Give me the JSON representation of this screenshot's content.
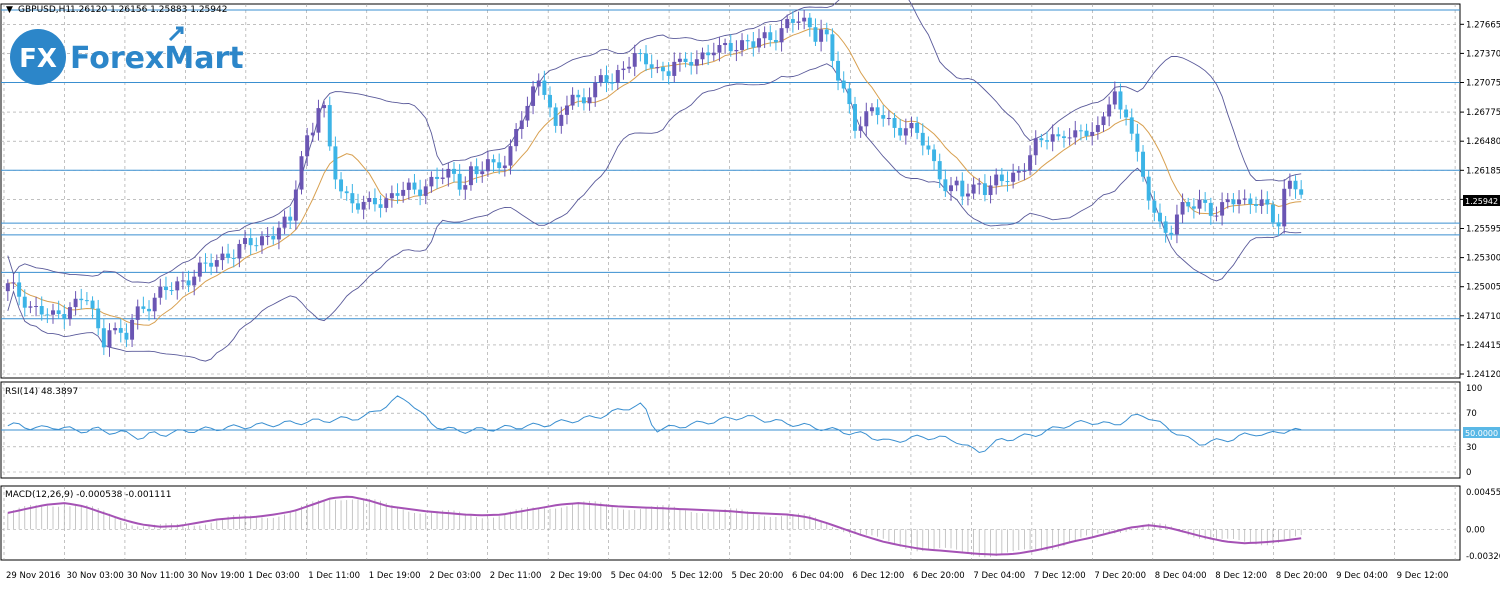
{
  "window": {
    "title_symbol": "GBPUSD,H1",
    "ohlc_text": "1.26120 1.26156 1.25883 1.25942",
    "dropdown_glyph": "▼"
  },
  "logo": {
    "mark_text": "FX",
    "brand_text": "ForexMart",
    "brand_color": "#2c86c9"
  },
  "colors": {
    "bull_candle": "#6a55b3",
    "bear_candle": "#3cb4e6",
    "bollinger": "#5a5a9a",
    "ma": "#d8a050",
    "level_line": "#3a8fd0",
    "rsi_line": "#3a8fd0",
    "macd_signal": "#a552b5",
    "macd_hist": "#b8b8b8",
    "grid": "#9a9a9a",
    "axis_text": "#000000",
    "price_marker_bg": "#000000",
    "price_marker_fg": "#ffffff",
    "rsi_level_bg": "#5ab8e6"
  },
  "chart_data": [
    {
      "id": "price",
      "type": "candlestick",
      "symbol": "GBPUSD",
      "timeframe": "H1",
      "y_ticks": [
        "1.27665",
        "1.27370",
        "1.27075",
        "1.26775",
        "1.26480",
        "1.26185",
        "1.25890",
        "1.25595",
        "1.25300",
        "1.25005",
        "1.24710",
        "1.24415",
        "1.24120"
      ],
      "ylim": [
        1.2412,
        1.2781
      ],
      "current_price": "1.25942",
      "horizontal_levels": [
        1.2781,
        1.27075,
        1.26185,
        1.2565,
        1.2553,
        1.2515,
        1.2468
      ],
      "x_tick_labels": [
        "29 Nov 2016",
        "30 Nov 03:00",
        "30 Nov 11:00",
        "30 Nov 19:00",
        "1 Dec 03:00",
        "1 Dec 11:00",
        "1 Dec 19:00",
        "2 Dec 03:00",
        "2 Dec 11:00",
        "2 Dec 19:00",
        "5 Dec 04:00",
        "5 Dec 12:00",
        "5 Dec 20:00",
        "6 Dec 04:00",
        "6 Dec 12:00",
        "6 Dec 20:00",
        "7 Dec 04:00",
        "7 Dec 12:00",
        "7 Dec 20:00",
        "8 Dec 04:00",
        "8 Dec 12:00",
        "8 Dec 20:00",
        "9 Dec 04:00",
        "9 Dec 12:00"
      ],
      "anchor_closes": [
        1.25,
        1.2495,
        1.249,
        1.248,
        1.2475,
        1.2472,
        1.2468,
        1.2475,
        1.2485,
        1.2482,
        1.249,
        1.247,
        1.244,
        1.2465,
        1.245,
        1.2445,
        1.247,
        1.248,
        1.2485,
        1.249,
        1.2495,
        1.25,
        1.2505,
        1.251,
        1.2515,
        1.2518,
        1.2525,
        1.253,
        1.2535,
        1.2535,
        1.254,
        1.2545,
        1.2548,
        1.2553,
        1.2555,
        1.256,
        1.2565,
        1.262,
        1.265,
        1.2662,
        1.2695,
        1.264,
        1.261,
        1.2595,
        1.2585,
        1.258,
        1.2582,
        1.259,
        1.2588,
        1.2592,
        1.2596,
        1.2598,
        1.26,
        1.2604,
        1.2606,
        1.261,
        1.2615,
        1.2612,
        1.2605,
        1.2618,
        1.2608,
        1.263,
        1.2622,
        1.2628,
        1.2638,
        1.2655,
        1.268,
        1.27,
        1.2715,
        1.269,
        1.265,
        1.2685,
        1.2695,
        1.269,
        1.2696,
        1.27,
        1.2712,
        1.271,
        1.272,
        1.2728,
        1.2733,
        1.2725,
        1.273,
        1.2722,
        1.2715,
        1.2728,
        1.272,
        1.2732,
        1.2735,
        1.2735,
        1.274,
        1.2738,
        1.2745,
        1.2748,
        1.2748,
        1.2745,
        1.275,
        1.2752,
        1.2758,
        1.2765,
        1.2768,
        1.277,
        1.2765,
        1.2758,
        1.2768,
        1.273,
        1.271,
        1.2692,
        1.2665,
        1.2672,
        1.2675,
        1.2676,
        1.267,
        1.2665,
        1.2662,
        1.2658,
        1.2655,
        1.2645,
        1.263,
        1.2615,
        1.259,
        1.2603,
        1.2595,
        1.26,
        1.261,
        1.2592,
        1.2605,
        1.2612,
        1.2614,
        1.2618,
        1.2625,
        1.264,
        1.265,
        1.266,
        1.265,
        1.2655,
        1.265,
        1.2655,
        1.2665,
        1.266,
        1.2675,
        1.27,
        1.2672,
        1.268,
        1.264,
        1.26,
        1.258,
        1.256,
        1.2555,
        1.2575,
        1.258,
        1.258,
        1.2585,
        1.2583,
        1.2578,
        1.258,
        1.2585,
        1.2589,
        1.2586,
        1.2592,
        1.2585,
        1.257,
        1.256,
        1.2605,
        1.2612,
        1.2594
      ],
      "indicators": [
        "Bollinger Bands (20)",
        "Moving Average"
      ]
    },
    {
      "id": "rsi",
      "type": "line",
      "label": "RSI(14) 48.3897",
      "y_ticks": [
        "100",
        "70",
        "50.0000",
        "30",
        "0"
      ],
      "ylim": [
        0,
        100
      ],
      "level": 50,
      "level_label": "50.0000",
      "anchor_values": [
        55,
        56,
        53,
        52,
        54,
        52,
        50,
        49,
        51,
        48,
        47,
        45,
        40,
        46,
        45,
        47,
        49,
        50,
        51,
        52,
        53,
        54,
        55,
        56,
        57,
        58,
        59,
        60,
        61,
        62,
        63,
        64,
        66,
        72,
        80,
        88,
        85,
        70,
        58,
        52,
        50,
        49,
        50,
        51,
        52,
        53,
        54,
        55,
        56,
        58,
        60,
        62,
        64,
        66,
        70,
        74,
        78,
        80,
        50,
        52,
        54,
        56,
        58,
        60,
        62,
        64,
        66,
        64,
        62,
        60,
        58,
        56,
        54,
        52,
        50,
        48,
        46,
        44,
        40,
        36,
        38,
        40,
        42,
        41,
        40,
        38,
        30,
        24,
        30,
        38,
        40,
        42,
        44,
        48,
        52,
        56,
        58,
        60,
        58,
        56,
        60,
        66,
        68,
        60,
        52,
        46,
        38,
        34,
        36,
        38,
        40,
        44,
        46,
        44,
        48,
        50,
        48.4
      ],
      "threshold_note": "30 / 70"
    },
    {
      "id": "macd",
      "type": "line+histogram",
      "label": "MACD(12,26,9) -0.000538 -0.001111",
      "y_ticks": [
        "0.00455",
        "0.00",
        "-0.003265"
      ],
      "ylim": [
        -0.003265,
        0.00455
      ],
      "macd_main_value": "-0.000538",
      "signal_value": "-0.001111",
      "anchor_signal": [
        0.002,
        0.0025,
        0.003,
        0.0032,
        0.0028,
        0.002,
        0.0012,
        0.0006,
        0.0003,
        0.0004,
        0.0008,
        0.0012,
        0.0014,
        0.0015,
        0.0018,
        0.0022,
        0.003,
        0.0038,
        0.004,
        0.0035,
        0.0028,
        0.0025,
        0.0022,
        0.002,
        0.0018,
        0.0017,
        0.0018,
        0.0022,
        0.0026,
        0.003,
        0.0032,
        0.003,
        0.0028,
        0.0027,
        0.0026,
        0.0025,
        0.0024,
        0.0023,
        0.0022,
        0.002,
        0.0019,
        0.0018,
        0.0015,
        0.0008,
        0.0,
        -0.0008,
        -0.0015,
        -0.002,
        -0.0024,
        -0.0026,
        -0.0028,
        -0.003,
        -0.0031,
        -0.003,
        -0.0026,
        -0.0021,
        -0.0015,
        -0.001,
        -0.0004,
        0.0002,
        0.0005,
        0.0002,
        -0.0004,
        -0.001,
        -0.0015,
        -0.0017,
        -0.0016,
        -0.0014,
        -0.0011
      ]
    }
  ]
}
